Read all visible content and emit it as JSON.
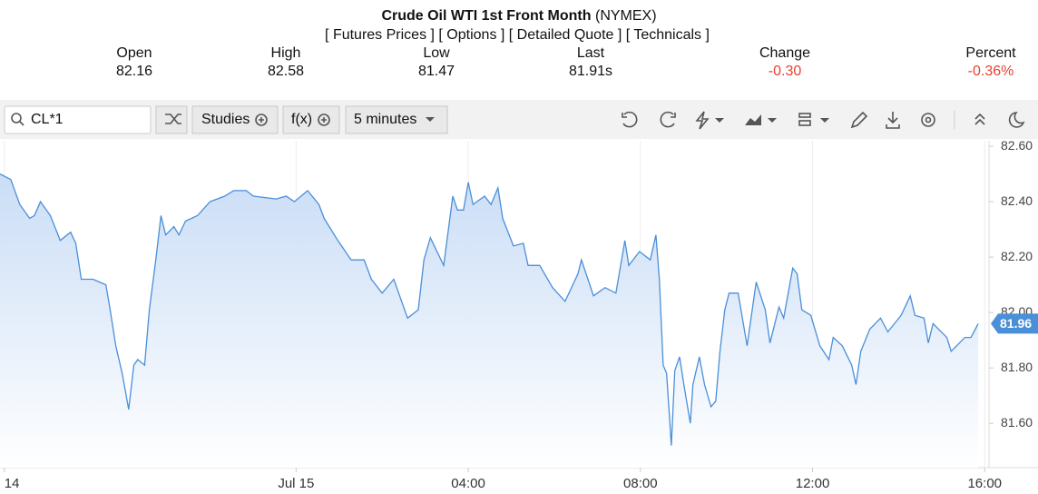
{
  "header": {
    "title": "Crude Oil WTI 1st Front Month",
    "exchange": "(NYMEX)",
    "links": "[ Futures Prices ] [ Options ] [ Detailed Quote ] [ Technicals ]",
    "stats": [
      {
        "label": "Open",
        "value": "82.16"
      },
      {
        "label": "High",
        "value": "82.58"
      },
      {
        "label": "Low",
        "value": "81.47"
      },
      {
        "label": "Last",
        "value": "81.91s"
      },
      {
        "label": "Change",
        "value": "-0.30"
      },
      {
        "label": "Percent",
        "value": "-0.36%"
      }
    ]
  },
  "toolbar": {
    "symbol": "CL*1",
    "studies": "Studies",
    "fx": "f(x)",
    "interval": "5 minutes"
  },
  "chart_data": {
    "type": "line",
    "color": "#4a8fd8",
    "fill": "#c8dcf6",
    "grid": true,
    "last_label": "81.96",
    "x": [
      -6.88,
      -6.63,
      -6.42,
      -6.19,
      -6.08,
      -5.94,
      -5.71,
      -5.48,
      -5.24,
      -5.12,
      -4.99,
      -4.72,
      -4.42,
      -4.32,
      -4.19,
      -4.04,
      -3.89,
      -3.77,
      -3.68,
      -3.52,
      -3.41,
      -3.26,
      -3.14,
      -3.03,
      -2.84,
      -2.72,
      -2.57,
      -2.29,
      -2.0,
      -1.66,
      -1.45,
      -1.16,
      -0.99,
      -0.46,
      -0.23,
      -0.04,
      0.27,
      0.53,
      0.65,
      0.97,
      1.28,
      1.58,
      1.75,
      2.0,
      2.27,
      2.59,
      2.84,
      2.97,
      3.12,
      3.43,
      3.64,
      3.75,
      3.89,
      4.0,
      4.11,
      4.38,
      4.53,
      4.69,
      4.8,
      5.05,
      5.28,
      5.39,
      5.66,
      5.96,
      6.25,
      6.55,
      6.63,
      6.91,
      7.18,
      7.43,
      7.64,
      7.73,
      7.98,
      8.23,
      8.36,
      8.44,
      8.53,
      8.61,
      8.72,
      8.8,
      8.91,
      9.01,
      9.16,
      9.22,
      9.37,
      9.49,
      9.64,
      9.75,
      9.85,
      9.96,
      10.06,
      10.27,
      10.48,
      10.69,
      10.9,
      11.01,
      11.22,
      11.33,
      11.54,
      11.64,
      11.75,
      11.96,
      12.17,
      12.38,
      12.48,
      12.69,
      12.91,
      13.01,
      13.12,
      13.33,
      13.58,
      13.75,
      14.06,
      14.27,
      14.38,
      14.59,
      14.69,
      14.8,
      15.12,
      15.22,
      15.54,
      15.68,
      15.85
    ],
    "values": [
      82.5,
      82.48,
      82.39,
      82.34,
      82.35,
      82.4,
      82.35,
      82.26,
      82.29,
      82.25,
      82.12,
      82.12,
      82.1,
      82.01,
      81.88,
      81.78,
      81.65,
      81.81,
      81.83,
      81.81,
      82.01,
      82.19,
      82.35,
      82.28,
      82.31,
      82.28,
      82.33,
      82.35,
      82.4,
      82.42,
      82.44,
      82.44,
      82.42,
      82.41,
      82.42,
      82.4,
      82.44,
      82.39,
      82.34,
      82.26,
      82.19,
      82.19,
      82.12,
      82.07,
      82.12,
      81.98,
      82.01,
      82.19,
      82.27,
      82.17,
      82.42,
      82.37,
      82.37,
      82.47,
      82.39,
      82.42,
      82.39,
      82.45,
      82.34,
      82.24,
      82.25,
      82.17,
      82.17,
      82.09,
      82.04,
      82.14,
      82.19,
      82.06,
      82.09,
      82.07,
      82.26,
      82.17,
      82.22,
      82.19,
      82.28,
      82.12,
      81.81,
      81.78,
      81.52,
      81.79,
      81.84,
      81.74,
      81.6,
      81.74,
      81.84,
      81.74,
      81.66,
      81.68,
      81.86,
      82.01,
      82.07,
      82.07,
      81.88,
      82.11,
      82.01,
      81.89,
      82.02,
      81.98,
      82.16,
      82.14,
      82.01,
      81.99,
      81.88,
      81.83,
      81.91,
      81.88,
      81.81,
      81.74,
      81.86,
      81.94,
      81.98,
      81.93,
      81.99,
      82.06,
      81.99,
      81.98,
      81.89,
      81.96,
      81.91,
      81.86,
      81.91,
      81.91,
      81.96
    ],
    "xlim": [
      -6.88,
      16.1
    ],
    "ylim": [
      81.44,
      82.62
    ],
    "xticks": [
      {
        "value": -6.78,
        "label": "14"
      },
      {
        "value": 0,
        "label": "Jul 15"
      },
      {
        "value": 4,
        "label": "04:00"
      },
      {
        "value": 8,
        "label": "08:00"
      },
      {
        "value": 12,
        "label": "12:00"
      },
      {
        "value": 16,
        "label": "16:00"
      }
    ],
    "yticks": [
      {
        "value": 81.6,
        "label": "81.60"
      },
      {
        "value": 81.8,
        "label": "81.80"
      },
      {
        "value": 82.0,
        "label": "82.00"
      },
      {
        "value": 82.2,
        "label": "82.20"
      },
      {
        "value": 82.4,
        "label": "82.40"
      },
      {
        "value": 82.6,
        "label": "82.60"
      }
    ]
  }
}
